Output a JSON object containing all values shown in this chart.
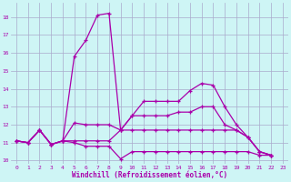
{
  "xlabel": "Windchill (Refroidissement éolien,°C)",
  "bg_color": "#cef5f5",
  "line_color": "#aa00aa",
  "grid_color": "#aaaacc",
  "xlim": [
    -0.5,
    23.5
  ],
  "ylim": [
    9.8,
    18.8
  ],
  "yticks": [
    10,
    11,
    12,
    13,
    14,
    15,
    16,
    17,
    18
  ],
  "xticks": [
    0,
    1,
    2,
    3,
    4,
    5,
    6,
    7,
    8,
    9,
    10,
    11,
    12,
    13,
    14,
    15,
    16,
    17,
    18,
    19,
    20,
    21,
    22,
    23
  ],
  "lines": [
    {
      "x": [
        0,
        1,
        2,
        3,
        4,
        5,
        6,
        7,
        8,
        9,
        10,
        11,
        12,
        13,
        14,
        15,
        16,
        17,
        18,
        19,
        20,
        21,
        22,
        23
      ],
      "y": [
        11.1,
        11.0,
        11.7,
        10.9,
        11.1,
        15.8,
        16.7,
        18.1,
        18.2,
        11.7,
        12.5,
        13.3,
        13.3,
        13.3,
        13.3,
        13.9,
        14.3,
        14.2,
        13.0,
        12.0,
        11.3,
        10.5,
        10.3,
        null
      ]
    },
    {
      "x": [
        0,
        1,
        2,
        3,
        4,
        5,
        6,
        7,
        8,
        9,
        10,
        11,
        12,
        13,
        14,
        15,
        16,
        17,
        18,
        19,
        20,
        21,
        22,
        23
      ],
      "y": [
        11.1,
        11.0,
        11.7,
        10.9,
        11.1,
        12.1,
        12.0,
        12.0,
        12.0,
        11.7,
        12.5,
        12.5,
        12.5,
        12.5,
        12.7,
        12.7,
        13.0,
        13.0,
        12.0,
        11.7,
        11.3,
        10.5,
        10.3,
        null
      ]
    },
    {
      "x": [
        0,
        1,
        2,
        3,
        4,
        5,
        6,
        7,
        8,
        9,
        10,
        11,
        12,
        13,
        14,
        15,
        16,
        17,
        18,
        19,
        20,
        21,
        22,
        23
      ],
      "y": [
        11.1,
        11.0,
        11.7,
        10.9,
        11.1,
        11.1,
        11.1,
        11.1,
        11.1,
        11.7,
        11.7,
        11.7,
        11.7,
        11.7,
        11.7,
        11.7,
        11.7,
        11.7,
        11.7,
        11.7,
        11.3,
        10.5,
        10.3,
        null
      ]
    },
    {
      "x": [
        0,
        1,
        2,
        3,
        4,
        5,
        6,
        7,
        8,
        9,
        10,
        11,
        12,
        13,
        14,
        15,
        16,
        17,
        18,
        19,
        20,
        21,
        22,
        23
      ],
      "y": [
        11.1,
        11.0,
        11.7,
        10.9,
        11.1,
        11.0,
        10.8,
        10.8,
        10.8,
        10.1,
        10.5,
        10.5,
        10.5,
        10.5,
        10.5,
        10.5,
        10.5,
        10.5,
        10.5,
        10.5,
        10.5,
        10.3,
        10.3,
        null
      ]
    }
  ]
}
